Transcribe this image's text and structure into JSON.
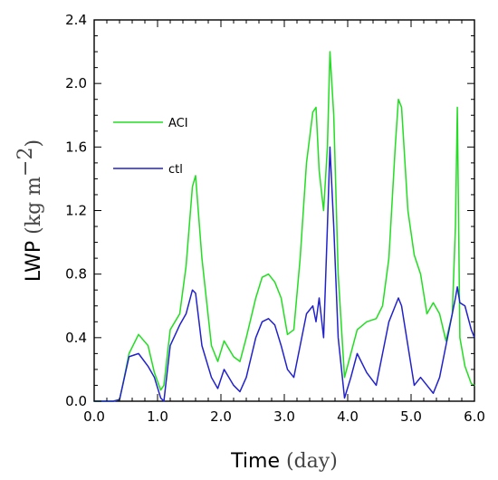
{
  "chart_data": {
    "type": "line",
    "xlabel": "Time",
    "xlabel_unit": "(day)",
    "ylabel": "LWP",
    "ylabel_unit": "(kg m",
    "ylabel_unit_exp": "−2",
    "ylabel_unit_close": ")",
    "xlim": [
      0,
      6
    ],
    "ylim": [
      0,
      2.4
    ],
    "x_ticks": [
      0,
      1,
      2,
      3,
      4,
      5,
      6
    ],
    "x_tick_labels": [
      "0.0",
      "1.0",
      "2.0",
      "3.0",
      "4.0",
      "5.0",
      "6.0"
    ],
    "y_ticks": [
      0,
      0.4,
      0.8,
      1.2,
      1.6,
      2.0,
      2.4
    ],
    "y_tick_labels": [
      "0.0",
      "0.4",
      "0.8",
      "1.2",
      "1.6",
      "2.0",
      "2.4"
    ],
    "grid": false,
    "legend_position": "upper-left",
    "series": [
      {
        "name": "ACI",
        "color": "#22dd22",
        "x": [
          0,
          0.3,
          0.4,
          0.45,
          0.55,
          0.7,
          0.85,
          0.95,
          1.05,
          1.1,
          1.2,
          1.35,
          1.45,
          1.55,
          1.6,
          1.7,
          1.85,
          1.95,
          2.05,
          2.2,
          2.3,
          2.4,
          2.55,
          2.65,
          2.75,
          2.85,
          2.95,
          3.05,
          3.15,
          3.25,
          3.35,
          3.45,
          3.5,
          3.55,
          3.62,
          3.68,
          3.72,
          3.78,
          3.85,
          3.95,
          4.05,
          4.15,
          4.3,
          4.45,
          4.55,
          4.65,
          4.75,
          4.8,
          4.85,
          4.95,
          5.05,
          5.15,
          5.25,
          5.35,
          5.45,
          5.55,
          5.65,
          5.7,
          5.73,
          5.77,
          5.85,
          5.95,
          6.0
        ],
        "y": [
          0,
          0,
          0.01,
          0.1,
          0.3,
          0.42,
          0.35,
          0.18,
          0.07,
          0.1,
          0.45,
          0.55,
          0.85,
          1.35,
          1.42,
          0.9,
          0.35,
          0.25,
          0.38,
          0.28,
          0.25,
          0.4,
          0.65,
          0.78,
          0.8,
          0.75,
          0.65,
          0.42,
          0.45,
          0.9,
          1.5,
          1.82,
          1.85,
          1.45,
          1.2,
          1.6,
          2.2,
          1.8,
          0.8,
          0.15,
          0.3,
          0.45,
          0.5,
          0.52,
          0.6,
          0.9,
          1.6,
          1.9,
          1.85,
          1.2,
          0.92,
          0.8,
          0.55,
          0.62,
          0.55,
          0.38,
          0.55,
          1.1,
          1.85,
          0.4,
          0.22,
          0.11,
          0.1
        ]
      },
      {
        "name": "ctl",
        "color": "#2222cc",
        "x": [
          0,
          0.3,
          0.4,
          0.45,
          0.55,
          0.7,
          0.85,
          0.95,
          1.05,
          1.1,
          1.2,
          1.35,
          1.45,
          1.55,
          1.6,
          1.7,
          1.85,
          1.95,
          2.05,
          2.2,
          2.3,
          2.4,
          2.55,
          2.65,
          2.75,
          2.85,
          2.95,
          3.05,
          3.15,
          3.25,
          3.35,
          3.45,
          3.5,
          3.55,
          3.62,
          3.68,
          3.72,
          3.78,
          3.85,
          3.95,
          4.05,
          4.15,
          4.3,
          4.45,
          4.55,
          4.65,
          4.75,
          4.8,
          4.85,
          4.95,
          5.05,
          5.15,
          5.25,
          5.35,
          5.45,
          5.55,
          5.65,
          5.7,
          5.73,
          5.77,
          5.85,
          5.95,
          6.0
        ],
        "y": [
          0,
          0,
          0.01,
          0.1,
          0.28,
          0.3,
          0.22,
          0.15,
          0.02,
          0.0,
          0.35,
          0.48,
          0.55,
          0.7,
          0.68,
          0.35,
          0.15,
          0.08,
          0.2,
          0.1,
          0.06,
          0.15,
          0.4,
          0.5,
          0.52,
          0.48,
          0.35,
          0.2,
          0.15,
          0.35,
          0.55,
          0.6,
          0.5,
          0.65,
          0.4,
          1.1,
          1.6,
          1.1,
          0.4,
          0.02,
          0.15,
          0.3,
          0.18,
          0.1,
          0.3,
          0.5,
          0.6,
          0.65,
          0.6,
          0.35,
          0.1,
          0.15,
          0.1,
          0.05,
          0.15,
          0.35,
          0.55,
          0.65,
          0.72,
          0.62,
          0.6,
          0.45,
          0.4
        ]
      }
    ]
  }
}
